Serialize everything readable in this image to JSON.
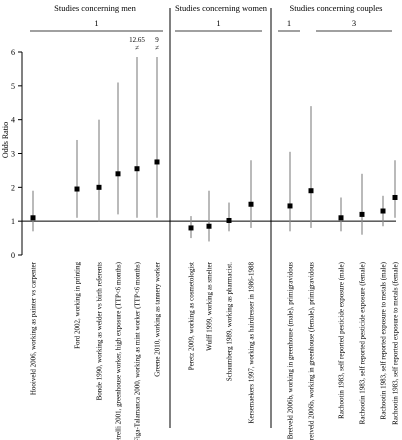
{
  "chart_data": {
    "type": "scatter",
    "ylabel": "Odds Ratio",
    "ylim": [
      0,
      6
    ],
    "yticks": [
      0,
      1,
      2,
      3,
      4,
      5,
      6
    ],
    "reference_line": 1,
    "grid": false,
    "groups": [
      {
        "title": "Studies concerning men",
        "count_label": "1",
        "start": 0,
        "end": 5
      },
      {
        "title": "Studies concerning women",
        "count_label": "1",
        "start": 6,
        "end": 9
      },
      {
        "title": "Studies concerning couples",
        "count_label": "1",
        "start": 10,
        "end": 11,
        "extra": {
          "count_label": "3",
          "start": 12,
          "end": 15
        }
      }
    ],
    "studies": [
      {
        "label": "Hooiveld 2006, working as painter vs carpenter",
        "or": 1.1,
        "lower": 0.7,
        "upper": 1.9
      },
      {
        "label": "Ford 2002, working in printing",
        "or": 1.95,
        "lower": 1.1,
        "upper": 3.4
      },
      {
        "label": "Bonde 1990, working as welder vs birth referents",
        "or": 2.0,
        "lower": 1.0,
        "upper": 4.0
      },
      {
        "label": "Petrelli 2001, greenhouse worker, high exposure (TTP<6 months)",
        "or": 2.4,
        "lower": 1.2,
        "upper": 5.1
      },
      {
        "label": "Figa-Talamanca 2000, working as mint worker (TTP<6 months)",
        "or": 2.55,
        "lower": 1.1,
        "upper": 12.65,
        "upper_label": "12.65",
        "upper_truncated": true
      },
      {
        "label": "Greene 2010, working as tannery worker",
        "or": 2.75,
        "lower": 1.1,
        "upper": 9,
        "upper_label": "9",
        "upper_truncated": true
      },
      {
        "label": "Peretz 2009, working as cosmetologist",
        "or": 0.8,
        "lower": 0.5,
        "upper": 1.15
      },
      {
        "label": "Wulff 1999, working as smelter",
        "or": 0.85,
        "lower": 0.4,
        "upper": 1.9
      },
      {
        "label": "Schaumberg 1989, working as pharmacist.",
        "or": 1.02,
        "lower": 0.7,
        "upper": 1.55
      },
      {
        "label": "Kersemaekers 1997, working as hairdresser in 1986-1988",
        "or": 1.5,
        "lower": 0.8,
        "upper": 2.8
      },
      {
        "label": "Bretveld 2006b, working in greenhouse (male), primigravidous",
        "or": 1.45,
        "lower": 0.7,
        "upper": 3.05
      },
      {
        "label": "Bretveld 2006b, working in greenhouse (female), primigravidous",
        "or": 1.9,
        "lower": 0.8,
        "upper": 4.4
      },
      {
        "label": "Rachootin 1983, self reported pesticide exposure (male)",
        "or": 1.1,
        "lower": 0.7,
        "upper": 1.7
      },
      {
        "label": "Rachootin 1983, self reported pesticide exposure (female)",
        "or": 1.2,
        "lower": 0.6,
        "upper": 2.4
      },
      {
        "label": "Rachootin 1983, self reported exposure to metals (male)",
        "or": 1.3,
        "lower": 0.85,
        "upper": 1.75
      },
      {
        "label": "Rachootin 1983, self reported exposure to metals (female)",
        "or": 1.7,
        "lower": 1.1,
        "upper": 2.8
      }
    ]
  }
}
